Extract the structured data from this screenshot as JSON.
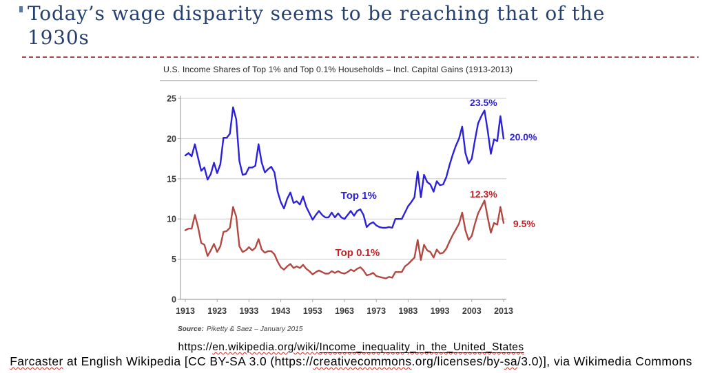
{
  "slide": {
    "title": "Today’s wage disparity seems to be reaching that of the 1930s",
    "title_color": "#25406F",
    "separator_color": "#A34545"
  },
  "chart": {
    "title": "U.S. Income Shares of Top 1% and Top 0.1% Households – Incl. Capital Gains (1913-2013)",
    "source_label": "Source:",
    "source_text": "Piketty & Saez – January 2015"
  },
  "chart_data": {
    "type": "line",
    "title": "U.S. Income Shares of Top 1% and Top 0.1% Households – Incl. Capital Gains (1913-2013)",
    "xlim": [
      1913,
      2013
    ],
    "ylim": [
      0,
      25
    ],
    "x_ticks": [
      1913,
      1923,
      1933,
      1943,
      1953,
      1963,
      1973,
      1983,
      1993,
      2003,
      2013
    ],
    "y_ticks": [
      0,
      5,
      10,
      15,
      20,
      25
    ],
    "grid": true,
    "legend_position": "inline-annotations",
    "x_start": 1913,
    "series": [
      {
        "name": "Top 1%",
        "color": "#2B20DB",
        "values": [
          17.9,
          18.2,
          17.8,
          19.3,
          17.6,
          16.0,
          16.4,
          14.9,
          15.6,
          17.0,
          15.7,
          16.8,
          20.1,
          20.1,
          20.6,
          23.9,
          22.4,
          17.2,
          15.5,
          15.6,
          16.4,
          16.4,
          16.6,
          19.3,
          17.0,
          15.8,
          16.2,
          16.5,
          15.8,
          13.4,
          12.1,
          11.3,
          12.5,
          13.3,
          12.0,
          12.2,
          11.8,
          12.8,
          11.5,
          10.7,
          9.9,
          10.5,
          11.0,
          10.5,
          10.2,
          10.2,
          10.8,
          10.2,
          10.7,
          10.2,
          10.0,
          10.5,
          11.0,
          10.4,
          11.0,
          11.2,
          10.5,
          9.0,
          9.4,
          9.6,
          9.2,
          9.0,
          8.9,
          8.9,
          9.0,
          8.9,
          10.0,
          10.0,
          10.0,
          10.8,
          11.6,
          12.1,
          12.7,
          15.9,
          12.7,
          15.5,
          14.6,
          14.3,
          13.4,
          14.7,
          14.2,
          14.3,
          15.2,
          16.7,
          18.0,
          19.1,
          20.0,
          21.5,
          18.2,
          16.9,
          17.5,
          19.8,
          21.9,
          22.8,
          23.5,
          21.0,
          18.1,
          19.9,
          19.7,
          22.8,
          20.0
        ]
      },
      {
        "name": "Top 0.1%",
        "color": "#B34842",
        "values": [
          8.6,
          8.8,
          8.8,
          10.5,
          9.0,
          7.0,
          6.8,
          5.4,
          6.1,
          6.9,
          5.9,
          6.6,
          8.4,
          8.5,
          8.9,
          11.5,
          10.3,
          6.6,
          5.9,
          6.1,
          6.5,
          6.1,
          6.4,
          7.5,
          6.2,
          5.8,
          6.0,
          6.0,
          5.6,
          4.7,
          4.0,
          3.7,
          4.1,
          4.4,
          3.9,
          4.1,
          3.9,
          4.3,
          3.8,
          3.5,
          3.1,
          3.4,
          3.6,
          3.4,
          3.2,
          3.2,
          3.5,
          3.3,
          3.5,
          3.3,
          3.2,
          3.4,
          3.7,
          3.5,
          3.8,
          4.0,
          3.6,
          3.0,
          3.1,
          3.3,
          2.9,
          2.8,
          2.7,
          2.6,
          2.8,
          2.7,
          3.4,
          3.4,
          3.4,
          4.1,
          4.4,
          4.8,
          5.2,
          7.4,
          4.9,
          6.8,
          6.1,
          5.9,
          5.2,
          6.2,
          5.7,
          5.8,
          6.3,
          7.2,
          8.0,
          8.7,
          9.4,
          10.8,
          8.6,
          7.4,
          7.9,
          9.4,
          10.7,
          11.5,
          12.3,
          10.2,
          8.3,
          9.5,
          9.3,
          11.5,
          9.5
        ]
      }
    ],
    "annotations": [
      {
        "text": "Top 1%",
        "year": 1967.5,
        "value": 12.5,
        "color": "#2B20DB",
        "anchor": "middle",
        "size": 15,
        "bold": true
      },
      {
        "text": "Top 0.1%",
        "year": 1967.1,
        "value": 5.39,
        "color": "#C32128",
        "anchor": "middle",
        "size": 15,
        "bold": true
      },
      {
        "text": "23.5%",
        "year": 2006.7,
        "value": 24.06,
        "color": "#2B20DB",
        "anchor": "middle",
        "size": 14,
        "bold": true
      },
      {
        "text": "20.0%",
        "year": 2014.9,
        "value": 19.78,
        "color": "#2B20DB",
        "anchor": "start",
        "size": 14,
        "bold": true
      },
      {
        "text": "12.3%",
        "year": 2006.7,
        "value": 12.67,
        "color": "#C32128",
        "anchor": "middle",
        "size": 14,
        "bold": true
      },
      {
        "text": "9.5%",
        "year": 2016.0,
        "value": 8.99,
        "color": "#C32128",
        "anchor": "start",
        "size": 14,
        "bold": true
      }
    ],
    "source": "Source: Piketty & Saez – January 2015",
    "axis_color": "#A3A3A3",
    "grid_color": "#CACACA",
    "tick_label_color": "#3A3A3A"
  },
  "footer": {
    "url_line": [
      {
        "text": "https://",
        "style": "plain"
      },
      {
        "text": "en.wikipedia.org/wiki/",
        "style": "wavy"
      },
      {
        "text": "Income_inequality_in_the_United_States",
        "style": "underline-wavy"
      }
    ],
    "attribution_line": [
      {
        "text": "Farcaster",
        "style": "wavy"
      },
      {
        "text": " at English Wikipedia [CC BY-SA 3.0 (https://",
        "style": "plain"
      },
      {
        "text": "creativecommons",
        "style": "wavy"
      },
      {
        "text": ".org/licenses/by-",
        "style": "plain"
      },
      {
        "text": "sa",
        "style": "wavy"
      },
      {
        "text": "/3.0)], via Wikimedia Commons",
        "style": "plain"
      }
    ]
  }
}
